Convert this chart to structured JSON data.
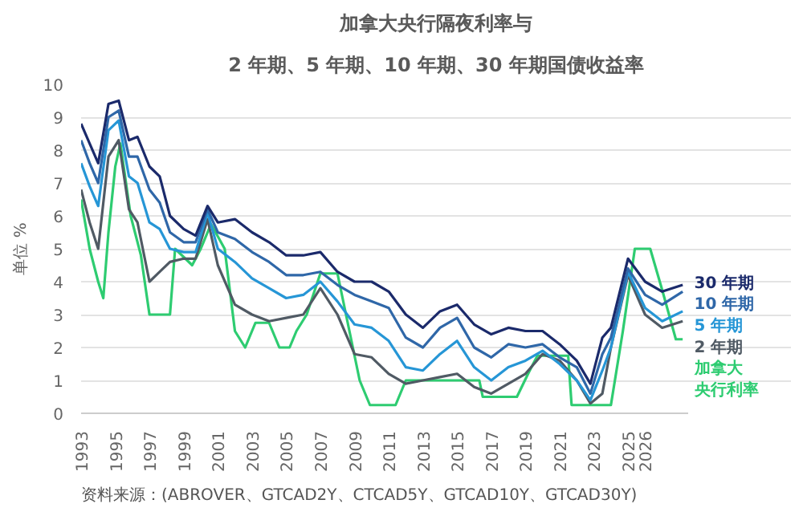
{
  "chart_data": {
    "type": "line",
    "title": "加拿大央行隔夜利率与",
    "subtitle": "2 年期、5 年期、10 年期、30 年期国债收益率",
    "ylabel": "单位 %",
    "annotations": [
      "资料来源：(ABROVER、GTCAD2Y、CTCAD5Y、GTCAD10Y、GTCAD30Y)"
    ],
    "xlim": [
      1993,
      2028.5
    ],
    "ylim": [
      0,
      10
    ],
    "yticks": [
      0,
      1,
      2,
      3,
      4,
      5,
      6,
      7,
      8,
      9,
      10
    ],
    "xticks": [
      1993,
      1995,
      1997,
      1999,
      2001,
      2003,
      2005,
      2007,
      2009,
      2011,
      2013,
      2015,
      2017,
      2019,
      2021,
      2023,
      2025,
      2026
    ],
    "x": [
      1993,
      1993.5,
      1994,
      1994.6,
      1995.2,
      1995.8,
      1996.3,
      1997,
      1997.6,
      1998.2,
      1999,
      1999.7,
      2000.4,
      2001,
      2002,
      2003,
      2004,
      2005,
      2006,
      2007,
      2008,
      2009,
      2010,
      2011,
      2012,
      2013,
      2014,
      2015,
      2016,
      2017,
      2018,
      2019,
      2020,
      2021,
      2022,
      2022.8,
      2023.5,
      2024,
      2025,
      2026,
      2027,
      2028.2
    ],
    "grid": "y",
    "line_style": "solid",
    "series": [
      {
        "name": "30 年期",
        "color": "#1b2a6b",
        "values": [
          8.8,
          8.2,
          7.6,
          9.4,
          9.5,
          8.3,
          8.4,
          7.5,
          7.2,
          6.0,
          5.6,
          5.4,
          6.3,
          5.8,
          5.9,
          5.5,
          5.2,
          4.8,
          4.8,
          4.9,
          4.3,
          4.0,
          4.0,
          3.7,
          3.0,
          2.6,
          3.1,
          3.3,
          2.7,
          2.4,
          2.6,
          2.5,
          2.5,
          2.1,
          1.6,
          0.9,
          2.3,
          2.6,
          4.7,
          4.0,
          3.7,
          3.9
        ]
      },
      {
        "name": "10 年期",
        "color": "#2f67a8",
        "values": [
          8.3,
          7.6,
          7.0,
          9.0,
          9.2,
          7.8,
          7.8,
          6.8,
          6.4,
          5.5,
          5.2,
          5.2,
          6.2,
          5.5,
          5.3,
          4.9,
          4.6,
          4.2,
          4.2,
          4.3,
          3.9,
          3.6,
          3.4,
          3.2,
          2.3,
          2.0,
          2.6,
          2.9,
          2.0,
          1.7,
          2.1,
          2.0,
          2.1,
          1.7,
          1.4,
          0.6,
          1.8,
          2.3,
          4.4,
          3.6,
          3.3,
          3.7
        ]
      },
      {
        "name": "5 年期",
        "color": "#2696d6",
        "values": [
          7.6,
          6.9,
          6.3,
          8.6,
          8.9,
          7.2,
          7.0,
          5.8,
          5.6,
          5.0,
          4.9,
          4.9,
          6.1,
          5.0,
          4.6,
          4.1,
          3.8,
          3.5,
          3.6,
          4.0,
          3.4,
          2.7,
          2.6,
          2.2,
          1.4,
          1.3,
          1.8,
          2.2,
          1.4,
          1.0,
          1.4,
          1.6,
          1.9,
          1.5,
          1.0,
          0.4,
          1.3,
          2.0,
          4.3,
          3.2,
          2.8,
          3.1
        ]
      },
      {
        "name": "2 年期",
        "color": "#505a64",
        "values": [
          6.8,
          5.8,
          5.0,
          7.8,
          8.3,
          6.2,
          5.8,
          4.0,
          4.3,
          4.6,
          4.7,
          4.7,
          5.9,
          4.5,
          3.3,
          3.0,
          2.8,
          2.9,
          3.0,
          3.8,
          3.0,
          1.8,
          1.7,
          1.2,
          0.9,
          1.0,
          1.1,
          1.2,
          0.8,
          0.6,
          0.9,
          1.2,
          1.8,
          1.6,
          1.0,
          0.3,
          0.6,
          2.0,
          4.2,
          3.0,
          2.6,
          2.8
        ]
      },
      {
        "name": "加拿大央行利率",
        "color": "#2ecc71",
        "x": [
          1993,
          1993.5,
          1994,
          1994.3,
          1994.6,
          1995,
          1995.3,
          1995.9,
          1996.5,
          1997,
          1998.2,
          1998.5,
          1999,
          1999.5,
          2000,
          2000.6,
          2001.4,
          2002,
          2002.6,
          2003.2,
          2004,
          2004.6,
          2005.2,
          2005.6,
          2006.2,
          2007,
          2008,
          2009.3,
          2009.9,
          2011.4,
          2012,
          2016.3,
          2016.5,
          2018.5,
          2019.2,
          2019.7,
          2021.5,
          2021.7,
          2024,
          2024.7,
          2025.4,
          2026.3,
          2027,
          2027.8,
          2028.2
        ],
        "values": [
          6.5,
          5.0,
          4.0,
          3.5,
          5.5,
          7.5,
          8.2,
          6.0,
          4.8,
          3.0,
          3.0,
          5.0,
          4.75,
          4.5,
          5.0,
          5.75,
          5.0,
          2.5,
          2.0,
          2.75,
          2.75,
          2.0,
          2.0,
          2.5,
          3.0,
          4.25,
          4.25,
          1.0,
          0.25,
          0.25,
          1.0,
          1.0,
          0.5,
          0.5,
          1.25,
          1.75,
          1.75,
          0.25,
          0.25,
          2.5,
          5.0,
          5.0,
          3.75,
          2.25,
          2.25
        ]
      }
    ]
  }
}
